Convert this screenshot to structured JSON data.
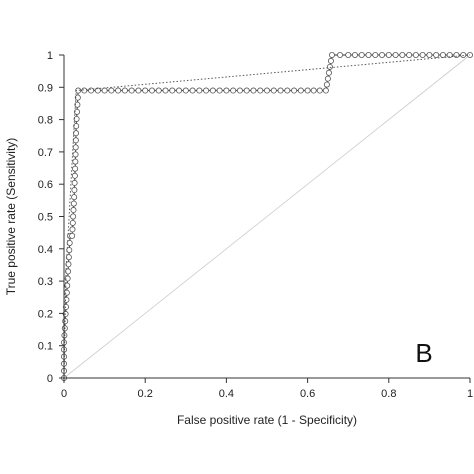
{
  "chart_data": {
    "type": "line",
    "title": "",
    "xlabel": "False positive rate (1 - Specificity)",
    "ylabel": "True positive rate (Sensitivity)",
    "panel_label": "B",
    "xlim": [
      0,
      1
    ],
    "ylim": [
      0,
      1
    ],
    "x_ticks": [
      "0",
      "0.2",
      "0.4",
      "0.6",
      "0.8",
      "1"
    ],
    "y_ticks": [
      "0",
      "0.1",
      "0.2",
      "0.3",
      "0.4",
      "0.5",
      "0.6",
      "0.7",
      "0.8",
      "0.9",
      "1"
    ],
    "grid": false,
    "legend": "none",
    "colors": {
      "curve": "#555555",
      "reference": "#cccccc",
      "axis": "#333333",
      "marker_fill": "#ffffff"
    },
    "series": [
      {
        "style": "solid-with-open-circles",
        "x": [
          0,
          0,
          0.005,
          0.01,
          0.015,
          0.02,
          0.025,
          0.028,
          0.03,
          0.035,
          0.05,
          0.1,
          0.2,
          0.3,
          0.4,
          0.5,
          0.6,
          0.645,
          0.66,
          0.7,
          0.8,
          0.9,
          1
        ],
        "y": [
          0,
          0.11,
          0.22,
          0.33,
          0.44,
          0.44,
          0.56,
          0.67,
          0.78,
          0.89,
          0.89,
          0.89,
          0.89,
          0.89,
          0.89,
          0.89,
          0.89,
          0.89,
          1,
          1,
          1,
          1,
          1
        ]
      },
      {
        "style": "dotted",
        "x": [
          0,
          0.005,
          0.01,
          0.02,
          0.03,
          1
        ],
        "y": [
          0,
          0.33,
          0.44,
          0.67,
          0.89,
          1
        ]
      },
      {
        "style": "reference-diagonal",
        "x": [
          0,
          1
        ],
        "y": [
          0,
          1
        ]
      }
    ]
  }
}
